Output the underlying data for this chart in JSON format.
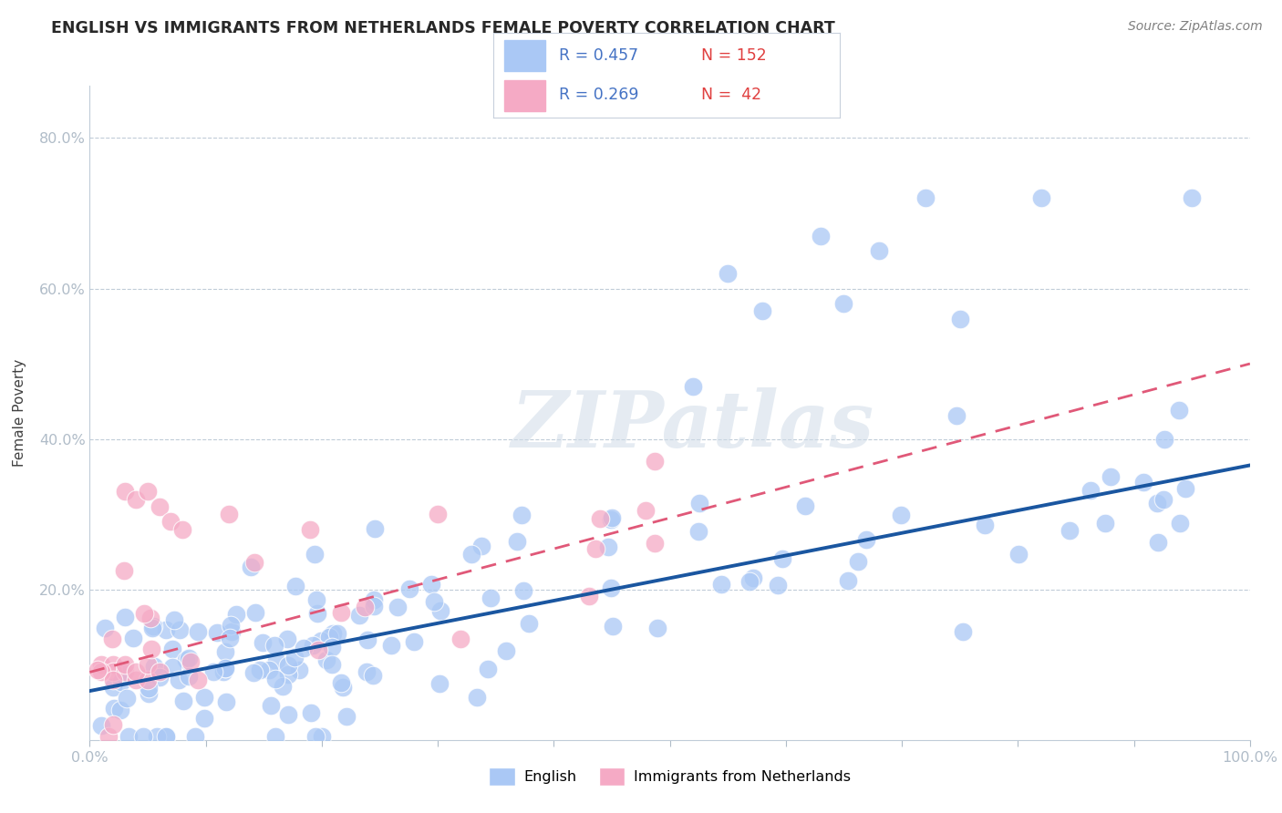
{
  "title": "ENGLISH VS IMMIGRANTS FROM NETHERLANDS FEMALE POVERTY CORRELATION CHART",
  "source_text": "Source: ZipAtlas.com",
  "ylabel": "Female Poverty",
  "xlim": [
    0.0,
    1.0
  ],
  "ylim": [
    0.0,
    0.87
  ],
  "english_R": "0.457",
  "english_N": "152",
  "netherlands_R": "0.269",
  "netherlands_N": " 42",
  "english_color": "#aac8f5",
  "netherlands_color": "#f5aac5",
  "english_line_color": "#1a56a0",
  "netherlands_line_color": "#e05878",
  "r_color": "#4472c4",
  "n_color": "#e04040",
  "watermark": "ZIPatlas",
  "ytick_positions": [
    0.0,
    0.2,
    0.4,
    0.6,
    0.8
  ],
  "yticklabels": [
    "",
    "20.0%",
    "40.0%",
    "60.0%",
    "80.0%"
  ],
  "xtick_positions": [
    0.0,
    0.1,
    0.2,
    0.3,
    0.4,
    0.5,
    0.6,
    0.7,
    0.8,
    0.9,
    1.0
  ],
  "xticklabels": [
    "0.0%",
    "",
    "",
    "",
    "",
    "",
    "",
    "",
    "",
    "",
    "100.0%"
  ],
  "eng_line_x0": 0.0,
  "eng_line_y0": 0.065,
  "eng_line_x1": 1.0,
  "eng_line_y1": 0.365,
  "neth_line_x0": 0.0,
  "neth_line_y0": 0.09,
  "neth_line_x1": 1.0,
  "neth_line_y1": 0.5
}
